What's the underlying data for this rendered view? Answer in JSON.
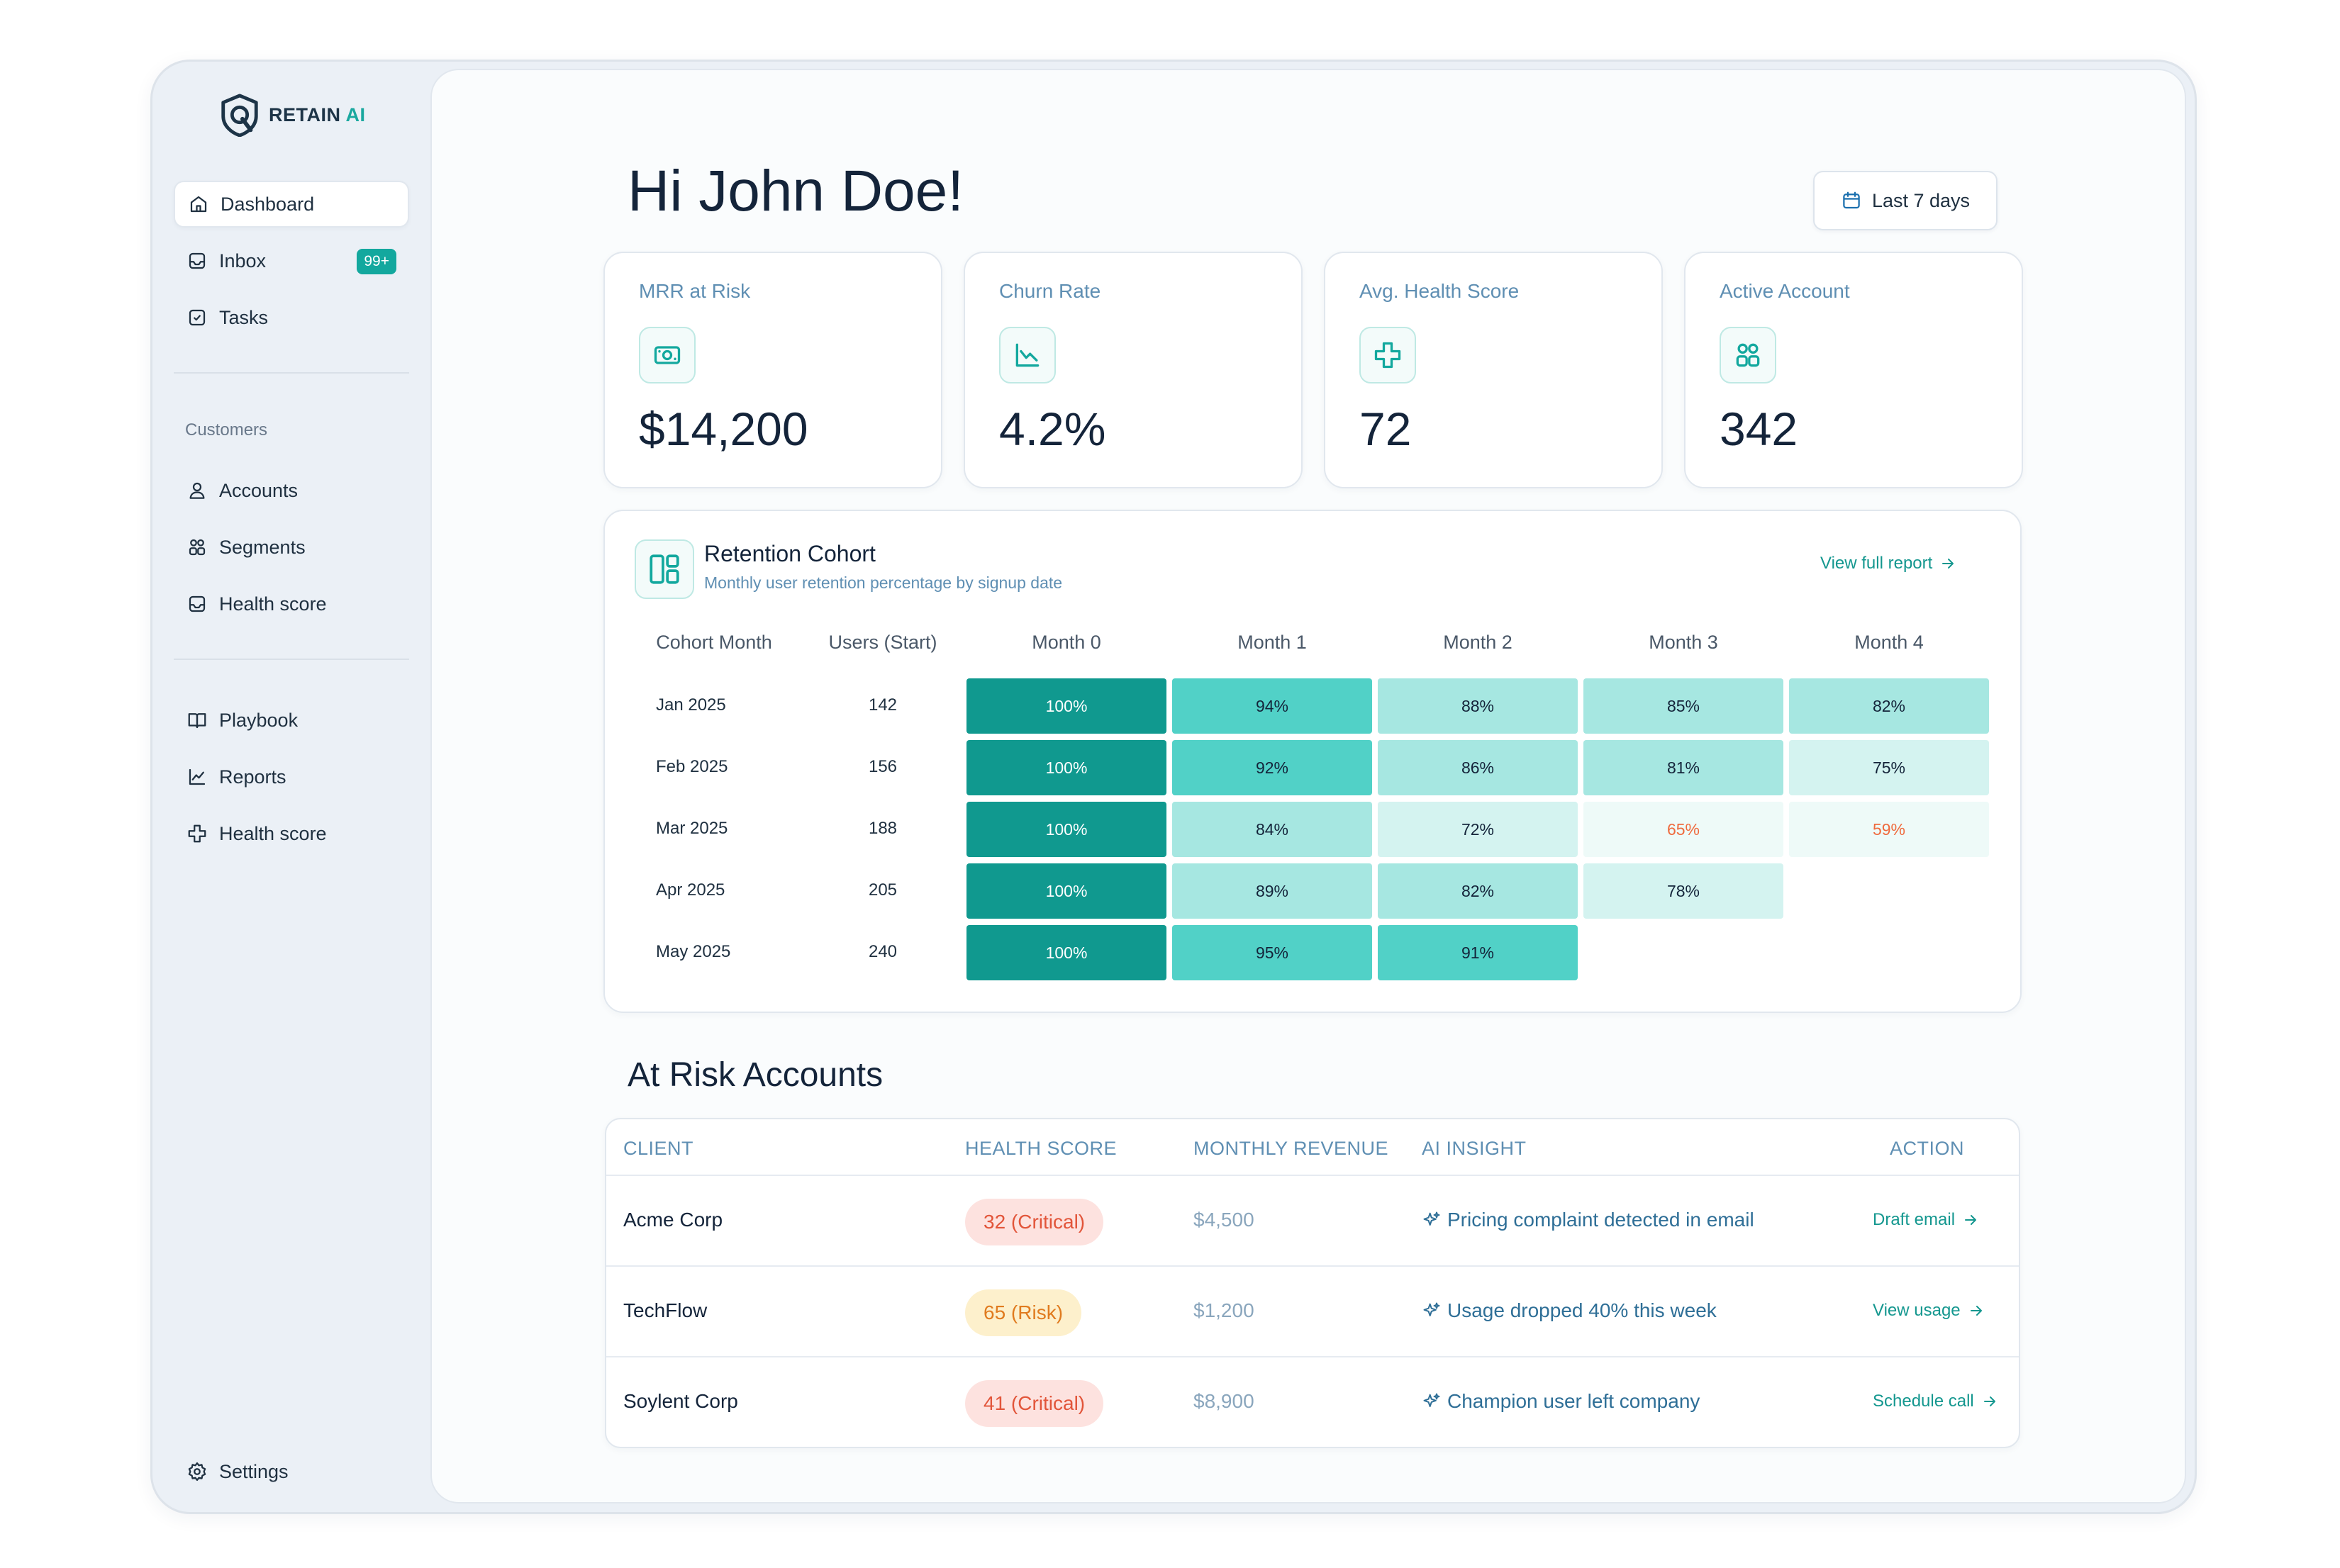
{
  "brand": {
    "name": "RETAIN",
    "suffix": "AI"
  },
  "sidebar": {
    "items": [
      {
        "label": "Dashboard"
      },
      {
        "label": "Inbox",
        "badge": "99+"
      },
      {
        "label": "Tasks"
      }
    ],
    "customers_label": "Customers",
    "customer_items": [
      {
        "label": "Accounts"
      },
      {
        "label": "Segments"
      },
      {
        "label": "Health score"
      }
    ],
    "tool_items": [
      {
        "label": "Playbook"
      },
      {
        "label": "Reports"
      },
      {
        "label": "Health score"
      }
    ],
    "settings_label": "Settings"
  },
  "header": {
    "greeting": "Hi John Doe!",
    "date_range": "Last 7 days"
  },
  "stats": [
    {
      "label": "MRR at Risk",
      "value": "$14,200",
      "icon": "money-icon"
    },
    {
      "label": "Churn Rate",
      "value": "4.2%",
      "icon": "trend-down-icon"
    },
    {
      "label": "Avg. Health Score",
      "value": "72",
      "icon": "health-plus-icon"
    },
    {
      "label": "Active Account",
      "value": "342",
      "icon": "users-icon"
    }
  ],
  "retention": {
    "title": "Retention Cohort",
    "subtitle": "Monthly user retention percentage by signup date",
    "link": "View full report",
    "columns": [
      "Cohort Month",
      "Users (Start)",
      "Month 0",
      "Month 1",
      "Month 2",
      "Month 3",
      "Month 4"
    ],
    "rows": [
      {
        "cohort": "Jan 2025",
        "users": "142",
        "values": [
          "100%",
          "94%",
          "88%",
          "85%",
          "82%"
        ]
      },
      {
        "cohort": "Feb 2025",
        "users": "156",
        "values": [
          "100%",
          "92%",
          "86%",
          "81%",
          "75%"
        ]
      },
      {
        "cohort": "Mar 2025",
        "users": "188",
        "values": [
          "100%",
          "84%",
          "72%",
          "65%",
          "59%"
        ]
      },
      {
        "cohort": "Apr 2025",
        "users": "205",
        "values": [
          "100%",
          "89%",
          "82%",
          "78%"
        ]
      },
      {
        "cohort": "May 2025",
        "users": "240",
        "values": [
          "100%",
          "95%",
          "91%"
        ]
      }
    ]
  },
  "at_risk": {
    "title": "At Risk Accounts",
    "headers": {
      "client": "CLIENT",
      "health": "HEALTH SCORE",
      "revenue": "MONTHLY REVENUE",
      "insight": "AI INSIGHT",
      "action": "ACTION"
    },
    "rows": [
      {
        "client": "Acme Corp",
        "health": "32 (Critical)",
        "status": "critical",
        "revenue": "$4,500",
        "insight": "Pricing complaint detected in email",
        "action": "Draft email"
      },
      {
        "client": "TechFlow",
        "health": "65 (Risk)",
        "status": "risk",
        "revenue": "$1,200",
        "insight": "Usage dropped 40% this week",
        "action": "View usage"
      },
      {
        "client": "Soylent Corp",
        "health": "41 (Critical)",
        "status": "critical",
        "revenue": "$8,900",
        "insight": "Champion user left company",
        "action": "Schedule call"
      }
    ]
  },
  "colors": {
    "accent": "#13a89e",
    "critical_text": "#e2553a",
    "risk_text": "#e07b1f"
  }
}
